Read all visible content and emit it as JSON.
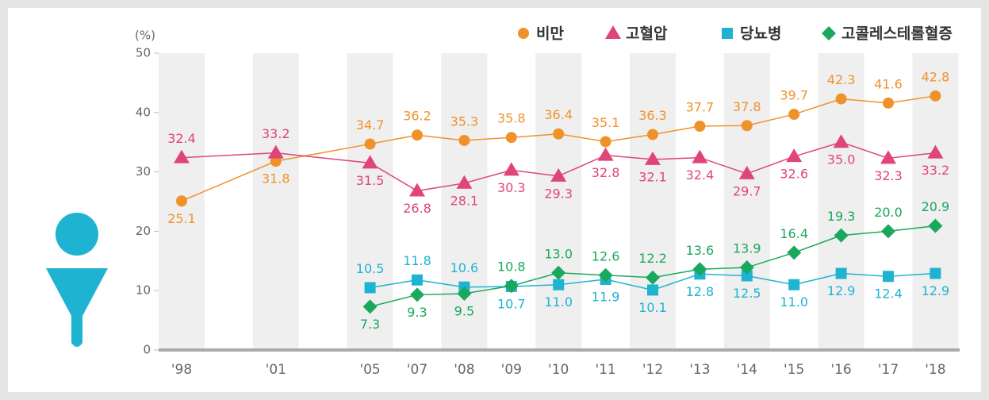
{
  "chart_data": {
    "type": "line",
    "y_label": "(%)",
    "categories": [
      "'98",
      "'01",
      "'05",
      "'07",
      "'08",
      "'09",
      "'10",
      "'11",
      "'12",
      "'13",
      "'14",
      "'15",
      "'16",
      "'17",
      "'18"
    ],
    "series": [
      {
        "name": "비만",
        "color": "#f0922a",
        "marker": "circle",
        "values": [
          25.1,
          31.8,
          34.7,
          36.2,
          35.3,
          35.8,
          36.4,
          35.1,
          36.3,
          37.7,
          37.8,
          39.7,
          42.3,
          41.6,
          42.8
        ],
        "value_labels": [
          "25.1",
          "31.8",
          "34.7",
          "36.2",
          "35.3",
          "35.8",
          "36.4",
          "35.1",
          "36.3",
          "37.7",
          "37.8",
          "39.7",
          "42.3",
          "41.6",
          "42.8"
        ]
      },
      {
        "name": "고혈압",
        "color": "#e0457a",
        "marker": "triangle",
        "values": [
          32.4,
          33.2,
          31.5,
          26.8,
          28.1,
          30.3,
          29.3,
          32.8,
          32.1,
          32.4,
          29.7,
          32.6,
          35.0,
          32.3,
          33.2
        ],
        "value_labels": [
          "32.4",
          "33.2",
          "31.5",
          "26.8",
          "28.1",
          "30.3",
          "29.3",
          "32.8",
          "32.1",
          "32.4",
          "29.7",
          "32.6",
          "35.0",
          "32.3",
          "33.2"
        ]
      },
      {
        "name": "당뇨병",
        "color": "#1fb3d2",
        "marker": "square",
        "values": [
          null,
          null,
          10.5,
          11.8,
          10.6,
          10.7,
          11.0,
          11.9,
          10.1,
          12.8,
          12.5,
          11.0,
          12.9,
          12.4,
          12.9
        ],
        "value_labels": [
          null,
          null,
          "10.5",
          "11.8",
          "10.6",
          "10.7",
          "11.0",
          "11.9",
          "10.1",
          "12.8",
          "12.5",
          "11.0",
          "12.9",
          "12.4",
          "12.9"
        ]
      },
      {
        "name": "고콜레스테롤혈증",
        "color": "#1aa95c",
        "marker": "diamond",
        "values": [
          null,
          null,
          7.3,
          9.3,
          9.5,
          10.8,
          13.0,
          12.6,
          12.2,
          13.6,
          13.9,
          16.4,
          19.3,
          20.0,
          20.9
        ],
        "value_labels": [
          null,
          null,
          "7.3",
          "9.3",
          "9.5",
          "10.8",
          "13.0",
          "12.6",
          "12.2",
          "13.6",
          "13.9",
          "16.4",
          "19.3",
          "20.0",
          "20.9"
        ]
      }
    ],
    "ylim": [
      0,
      50
    ],
    "yticks": [
      0,
      10,
      20,
      30,
      40,
      50
    ],
    "legend": "top-right"
  }
}
